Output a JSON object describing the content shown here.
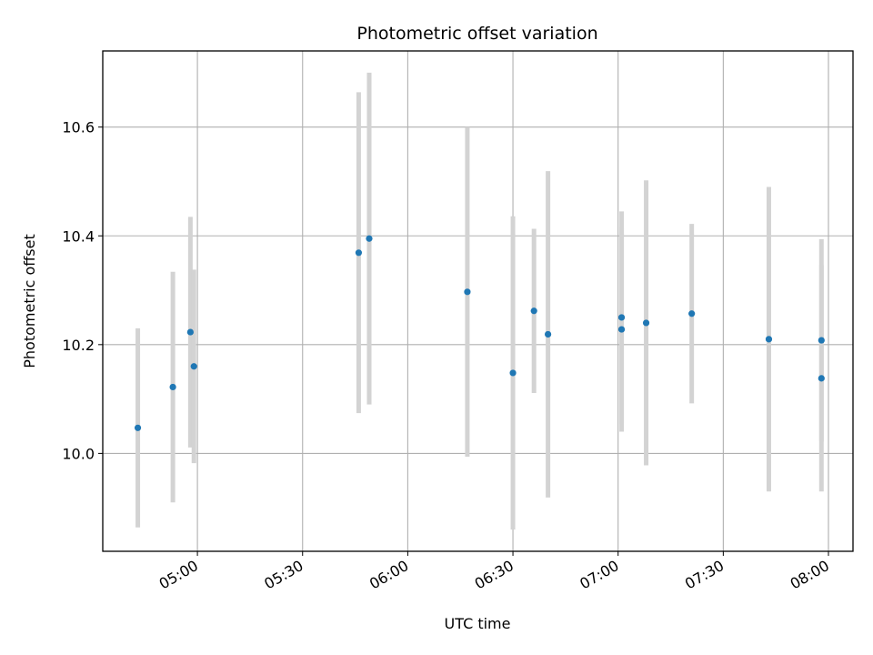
{
  "chart_data": {
    "type": "scatter",
    "title": "Photometric offset variation",
    "xlabel": "UTC time",
    "ylabel": "Photometric offset",
    "xlim": [
      "04:33",
      "08:07"
    ],
    "ylim": [
      9.82,
      10.74
    ],
    "grid": true,
    "x_ticks": [
      "05:00",
      "05:30",
      "06:00",
      "06:30",
      "07:00",
      "07:30",
      "08:00"
    ],
    "y_ticks": [
      10.0,
      10.2,
      10.4,
      10.6
    ],
    "y_tick_labels": [
      "10.0",
      "10.2",
      "10.4",
      "10.6"
    ],
    "series": [
      {
        "marker_color": "#1f77b4",
        "errorbar_color": "#d3d3d3",
        "points": [
          {
            "time": "04:43",
            "y": 10.047,
            "err": 0.183
          },
          {
            "time": "04:53",
            "y": 10.122,
            "err": 0.212
          },
          {
            "time": "04:58",
            "y": 10.223,
            "err": 0.212
          },
          {
            "time": "04:59",
            "y": 10.16,
            "err": 0.178
          },
          {
            "time": "05:46",
            "y": 10.369,
            "err": 0.295
          },
          {
            "time": "05:49",
            "y": 10.395,
            "err": 0.305
          },
          {
            "time": "06:17",
            "y": 10.297,
            "err": 0.303
          },
          {
            "time": "06:30",
            "y": 10.148,
            "err": 0.288
          },
          {
            "time": "06:36",
            "y": 10.262,
            "err": 0.151
          },
          {
            "time": "06:40",
            "y": 10.219,
            "err": 0.3
          },
          {
            "time": "07:01",
            "y": 10.228,
            "err": 0.188
          },
          {
            "time": "07:01",
            "y": 10.25,
            "err": 0.195
          },
          {
            "time": "07:08",
            "y": 10.24,
            "err": 0.262
          },
          {
            "time": "07:21",
            "y": 10.257,
            "err": 0.165
          },
          {
            "time": "07:43",
            "y": 10.21,
            "err": 0.28
          },
          {
            "time": "07:58",
            "y": 10.138,
            "err": 0.208
          },
          {
            "time": "07:58",
            "y": 10.208,
            "err": 0.186
          }
        ]
      }
    ]
  }
}
